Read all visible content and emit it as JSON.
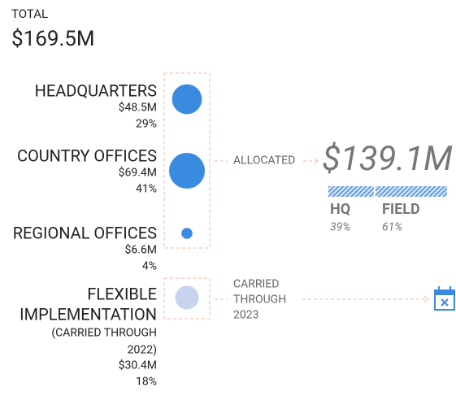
{
  "total": {
    "label": "TOTAL",
    "amount": "$169.5M"
  },
  "items": [
    {
      "name": [
        "HEADQUARTERS"
      ],
      "amount": "$48.5M",
      "share": "29%",
      "value": 48.5,
      "color": "#3a8be0"
    },
    {
      "name": [
        "COUNTRY OFFICES"
      ],
      "amount": "$69.4M",
      "share": "41%",
      "value": 69.4,
      "color": "#3a8be0"
    },
    {
      "name": [
        "REGIONAL OFFICES"
      ],
      "amount": "$6.6M",
      "share": "4%",
      "value": 6.6,
      "color": "#3a8be0"
    },
    {
      "name": [
        "FLEXIBLE",
        "IMPLEMENTATION"
      ],
      "note": [
        "(CARRIED THROUGH",
        "2022)"
      ],
      "amount": "$30.4M",
      "share": "18%",
      "value": 30.4,
      "color": "#c8d3ee"
    }
  ],
  "allocated": {
    "label": "ALLOCATED",
    "amount": "$139.1M",
    "split": [
      {
        "name": "HQ",
        "share": "39%",
        "value": 39
      },
      {
        "name": "FIELD",
        "share": "61%",
        "value": 61
      }
    ]
  },
  "carried": {
    "lines": [
      "CARRIED",
      "THROUGH",
      "2023"
    ]
  }
}
